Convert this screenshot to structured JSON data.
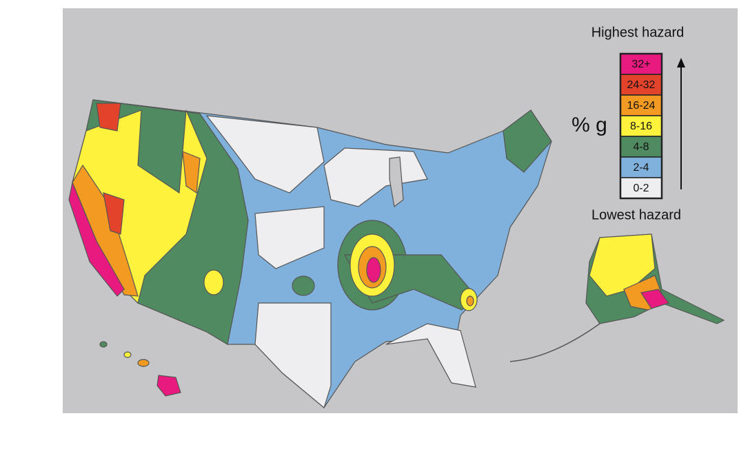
{
  "legend": {
    "top_label": "Highest hazard",
    "bottom_label": "Lowest hazard",
    "unit": "% g",
    "items": [
      {
        "label": "32+",
        "color": "#e8197f"
      },
      {
        "label": "24-32",
        "color": "#e4432b"
      },
      {
        "label": "16-24",
        "color": "#f29a22"
      },
      {
        "label": "8-16",
        "color": "#fff23c"
      },
      {
        "label": "4-8",
        "color": "#4f8a60"
      },
      {
        "label": "2-4",
        "color": "#80b1dc"
      },
      {
        "label": "0-2",
        "color": "#eeeef1"
      }
    ]
  }
}
